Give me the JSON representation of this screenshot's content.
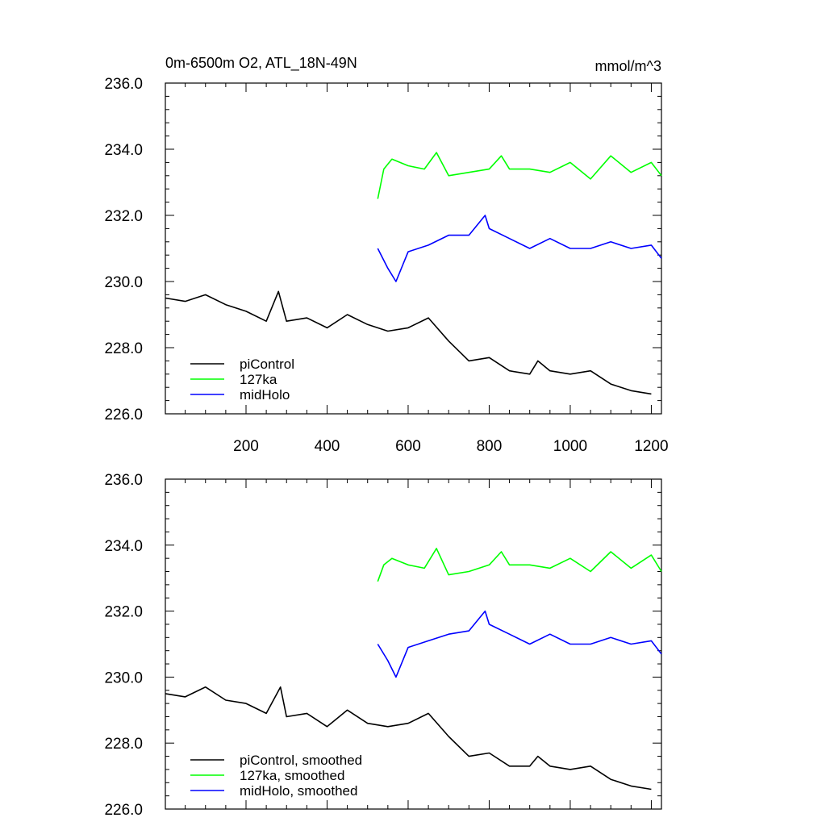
{
  "chart_data": [
    {
      "type": "line",
      "title": "0m-6500m O2, ATL_18N-49N",
      "units": "mmol/m^3",
      "xlim": [
        1,
        1225
      ],
      "ylim": [
        226.0,
        236.0
      ],
      "x_ticks": [
        200,
        400,
        600,
        800,
        1000,
        1200
      ],
      "x_tick_labels": [
        "200",
        "400",
        "600",
        "800",
        "1000",
        "1200"
      ],
      "y_ticks": [
        226.0,
        228.0,
        230.0,
        232.0,
        234.0,
        236.0
      ],
      "y_tick_labels": [
        "226.0",
        "228.0",
        "230.0",
        "232.0",
        "234.0",
        "236.0"
      ],
      "legend_position": "bottom-left",
      "series": [
        {
          "name": "piControl",
          "color": "#000000",
          "x": [
            1,
            50,
            100,
            150,
            200,
            250,
            280,
            300,
            350,
            400,
            450,
            500,
            550,
            600,
            650,
            700,
            750,
            800,
            850,
            900,
            920,
            950,
            1000,
            1050,
            1100,
            1150,
            1200
          ],
          "y": [
            229.5,
            229.4,
            229.6,
            229.3,
            229.1,
            228.8,
            229.7,
            228.8,
            228.9,
            228.6,
            229.0,
            228.7,
            228.5,
            228.6,
            228.9,
            228.2,
            227.6,
            227.7,
            227.3,
            227.2,
            227.6,
            227.3,
            227.2,
            227.3,
            226.9,
            226.7,
            226.6
          ]
        },
        {
          "name": "127ka",
          "color": "#00ff00",
          "x": [
            525,
            540,
            560,
            600,
            640,
            670,
            700,
            750,
            800,
            830,
            850,
            900,
            950,
            1000,
            1050,
            1100,
            1150,
            1200,
            1225
          ],
          "y": [
            232.5,
            233.4,
            233.7,
            233.5,
            233.4,
            233.9,
            233.2,
            233.3,
            233.4,
            233.8,
            233.4,
            233.4,
            233.3,
            233.6,
            233.1,
            233.8,
            233.3,
            233.6,
            233.2
          ]
        },
        {
          "name": "midHolo",
          "color": "#0000ff",
          "x": [
            525,
            550,
            570,
            600,
            650,
            700,
            750,
            790,
            800,
            850,
            900,
            950,
            1000,
            1050,
            1100,
            1150,
            1200,
            1225
          ],
          "y": [
            231.0,
            230.4,
            230.0,
            230.9,
            231.1,
            231.4,
            231.4,
            232.0,
            231.6,
            231.3,
            231.0,
            231.3,
            231.0,
            231.0,
            231.2,
            231.0,
            231.1,
            230.7
          ]
        }
      ]
    },
    {
      "type": "line",
      "xlim": [
        1,
        1225
      ],
      "ylim": [
        226.0,
        236.0
      ],
      "y_ticks": [
        226.0,
        228.0,
        230.0,
        232.0,
        234.0,
        236.0
      ],
      "y_tick_labels": [
        "226.0",
        "228.0",
        "230.0",
        "232.0",
        "234.0",
        "236.0"
      ],
      "legend_position": "bottom-left",
      "series": [
        {
          "name": "piControl, smoothed",
          "color": "#000000",
          "x": [
            1,
            50,
            100,
            150,
            200,
            250,
            285,
            300,
            350,
            400,
            450,
            500,
            550,
            600,
            650,
            700,
            750,
            800,
            850,
            900,
            920,
            950,
            1000,
            1050,
            1100,
            1150,
            1200
          ],
          "y": [
            229.5,
            229.4,
            229.7,
            229.3,
            229.2,
            228.9,
            229.7,
            228.8,
            228.9,
            228.5,
            229.0,
            228.6,
            228.5,
            228.6,
            228.9,
            228.2,
            227.6,
            227.7,
            227.3,
            227.3,
            227.6,
            227.3,
            227.2,
            227.3,
            226.9,
            226.7,
            226.6
          ]
        },
        {
          "name": "127ka, smoothed",
          "color": "#00ff00",
          "x": [
            525,
            540,
            560,
            600,
            640,
            670,
            700,
            750,
            800,
            830,
            850,
            900,
            950,
            1000,
            1050,
            1100,
            1150,
            1200,
            1225
          ],
          "y": [
            232.9,
            233.4,
            233.6,
            233.4,
            233.3,
            233.9,
            233.1,
            233.2,
            233.4,
            233.8,
            233.4,
            233.4,
            233.3,
            233.6,
            233.2,
            233.8,
            233.3,
            233.7,
            233.2
          ]
        },
        {
          "name": "midHolo, smoothed",
          "color": "#0000ff",
          "x": [
            525,
            550,
            570,
            600,
            650,
            700,
            750,
            790,
            800,
            850,
            900,
            950,
            1000,
            1050,
            1100,
            1150,
            1200,
            1225
          ],
          "y": [
            231.0,
            230.5,
            230.0,
            230.9,
            231.1,
            231.3,
            231.4,
            232.0,
            231.6,
            231.3,
            231.0,
            231.3,
            231.0,
            231.0,
            231.2,
            231.0,
            231.1,
            230.7
          ]
        }
      ]
    }
  ]
}
